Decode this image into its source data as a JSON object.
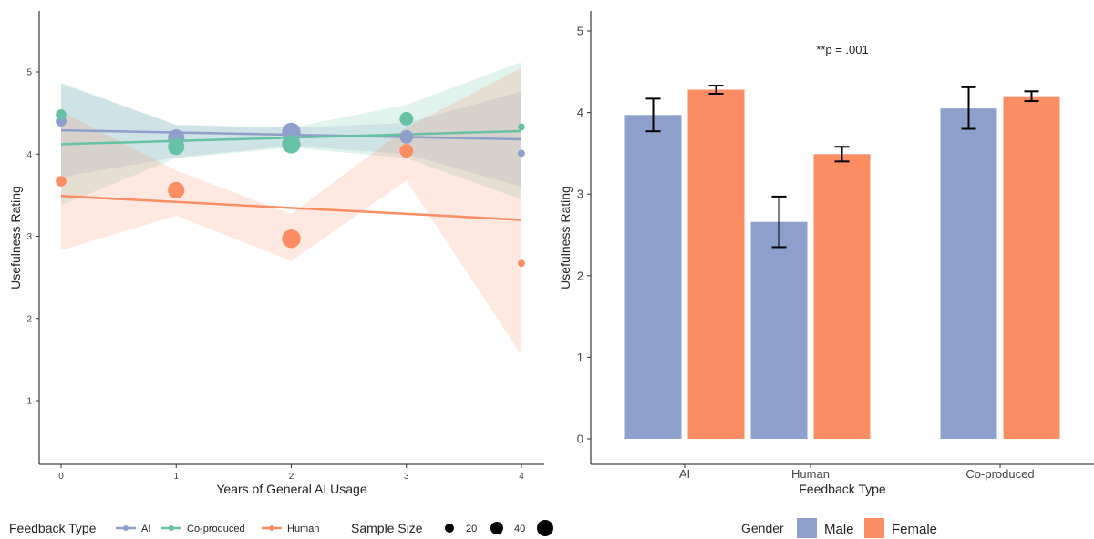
{
  "chart_data": [
    {
      "type": "scatter",
      "xlabel": "Years of General AI Usage",
      "ylabel": "Usefulness Rating",
      "xlim": [
        -0.2,
        4.2
      ],
      "ylim": [
        0.6,
        5.7
      ],
      "x_ticks": [
        0,
        1,
        2,
        3,
        4
      ],
      "y_ticks": [
        1,
        2,
        3,
        4,
        5
      ],
      "grid": false,
      "legend_title": "Feedback Type",
      "legend_placement": "bottom",
      "size_legend": {
        "title": "Sample Size",
        "values": [
          20,
          40
        ]
      },
      "series": [
        {
          "name": "AI",
          "color": "#8da0cb",
          "points": [
            {
              "x": 0,
              "y": 4.4,
              "n": 12
            },
            {
              "x": 1,
              "y": 4.2,
              "n": 30
            },
            {
              "x": 2,
              "y": 4.27,
              "n": 38
            },
            {
              "x": 3,
              "y": 4.21,
              "n": 20
            },
            {
              "x": 4,
              "y": 4.01,
              "n": 5
            }
          ],
          "fit": [
            [
              0,
              4.29
            ],
            [
              4,
              4.18
            ]
          ],
          "band_low": [
            [
              0,
              3.72
            ],
            [
              1,
              3.96
            ],
            [
              2,
              4.1
            ],
            [
              3,
              4.0
            ],
            [
              4,
              3.6
            ]
          ],
          "band_high": [
            [
              0,
              4.85
            ],
            [
              1,
              4.36
            ],
            [
              2,
              4.32
            ],
            [
              3,
              4.38
            ],
            [
              4,
              4.76
            ]
          ]
        },
        {
          "name": "Co-produced",
          "color": "#66c2a5",
          "points": [
            {
              "x": 0,
              "y": 4.48,
              "n": 12
            },
            {
              "x": 1,
              "y": 4.09,
              "n": 30
            },
            {
              "x": 2,
              "y": 4.12,
              "n": 38
            },
            {
              "x": 3,
              "y": 4.43,
              "n": 20
            },
            {
              "x": 4,
              "y": 4.33,
              "n": 5
            }
          ],
          "fit": [
            [
              0,
              4.12
            ],
            [
              4,
              4.28
            ]
          ],
          "band_low": [
            [
              0,
              3.38
            ],
            [
              1,
              3.95
            ],
            [
              2,
              4.08
            ],
            [
              3,
              3.95
            ],
            [
              4,
              3.45
            ]
          ],
          "band_high": [
            [
              0,
              4.87
            ],
            [
              1,
              4.35
            ],
            [
              2,
              4.32
            ],
            [
              3,
              4.6
            ],
            [
              4,
              5.12
            ]
          ]
        },
        {
          "name": "Human",
          "color": "#fc8d62",
          "points": [
            {
              "x": 0,
              "y": 3.67,
              "n": 12
            },
            {
              "x": 1,
              "y": 3.56,
              "n": 30
            },
            {
              "x": 2,
              "y": 2.97,
              "n": 38
            },
            {
              "x": 3,
              "y": 4.04,
              "n": 20
            },
            {
              "x": 4,
              "y": 2.67,
              "n": 5
            }
          ],
          "fit": [
            [
              0,
              3.49
            ],
            [
              4,
              3.2
            ]
          ],
          "band_low": [
            [
              0,
              2.83
            ],
            [
              1,
              3.25
            ],
            [
              2,
              2.7
            ],
            [
              3,
              3.68
            ],
            [
              4,
              1.55
            ]
          ],
          "band_high": [
            [
              0,
              4.52
            ],
            [
              1,
              3.8
            ],
            [
              2,
              3.27
            ],
            [
              3,
              4.32
            ],
            [
              4,
              5.05
            ]
          ]
        }
      ]
    },
    {
      "type": "bar",
      "xlabel": "Feedback Type",
      "ylabel": "Usefulness Rating",
      "ylim": [
        0,
        5.1
      ],
      "y_ticks": [
        0,
        1,
        2,
        3,
        4,
        5
      ],
      "grid": false,
      "categories": [
        "AI",
        "Human",
        "Co-produced"
      ],
      "annotation": "**p = .001",
      "legend_title": "Gender",
      "legend_placement": "bottom",
      "series": [
        {
          "name": "Male",
          "color": "#8da0cb",
          "values": [
            3.97,
            2.66,
            4.05
          ],
          "err_low": [
            3.77,
            2.35,
            3.8
          ],
          "err_high": [
            4.17,
            2.97,
            4.31
          ]
        },
        {
          "name": "Female",
          "color": "#fc8d62",
          "values": [
            4.28,
            3.49,
            4.2
          ],
          "err_low": [
            4.23,
            3.4,
            4.14
          ],
          "err_high": [
            4.33,
            3.58,
            4.26
          ]
        }
      ]
    }
  ]
}
